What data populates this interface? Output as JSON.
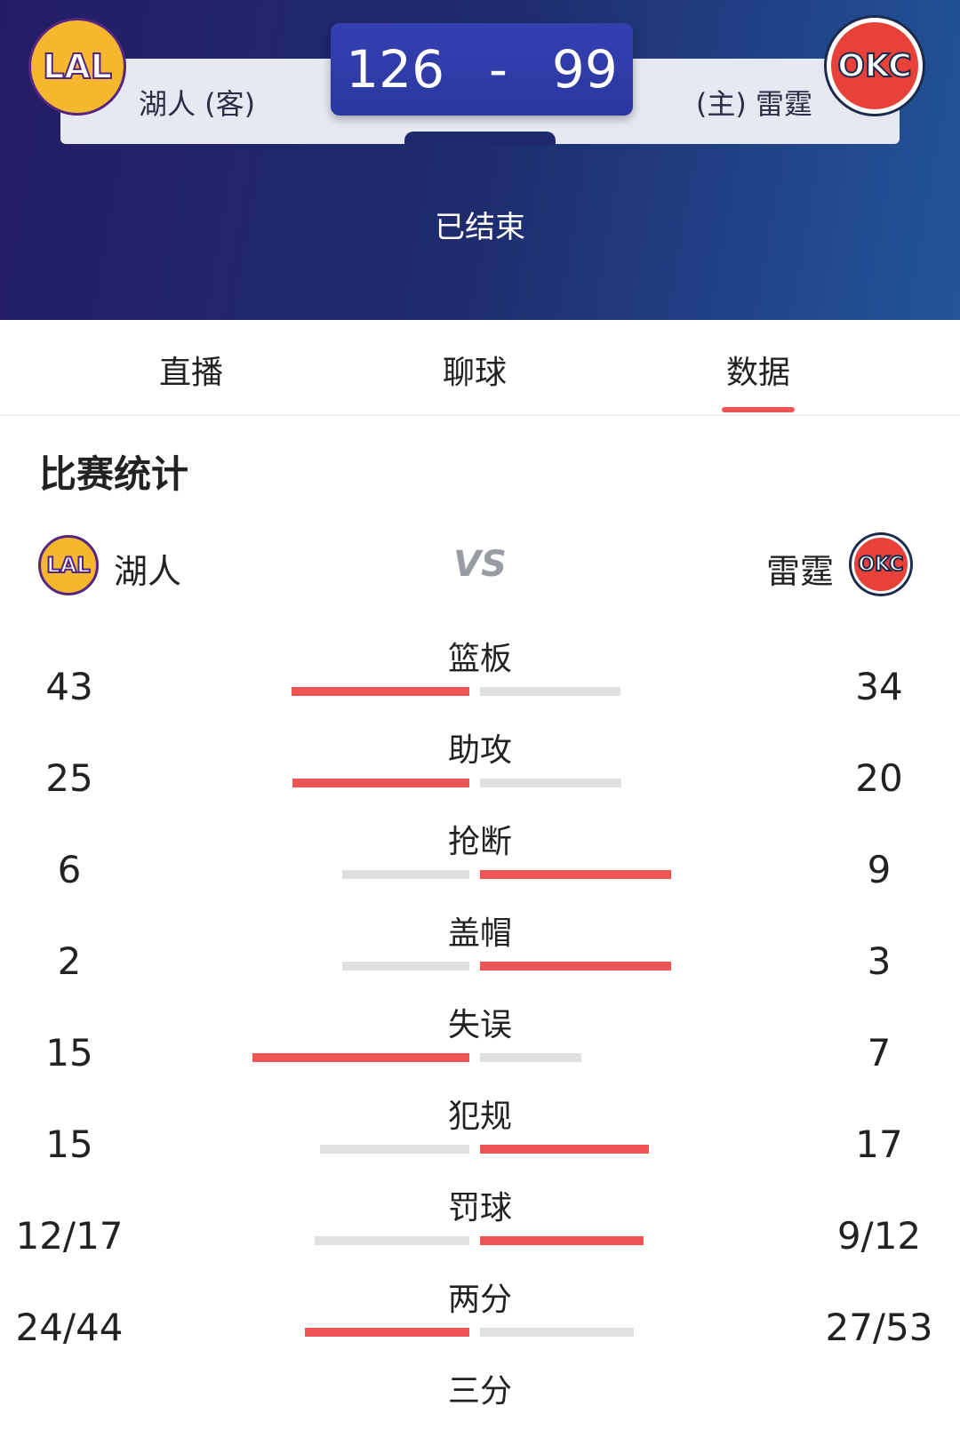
{
  "header": {
    "away": {
      "abbr": "LAL",
      "name": "湖人 (客)",
      "score": "126"
    },
    "home": {
      "abbr": "OKC",
      "name": "(主) 雷霆",
      "score": "99"
    },
    "separator": "-",
    "status": "已结束"
  },
  "tabs": [
    {
      "label": "直播"
    },
    {
      "label": "聊球"
    },
    {
      "label": "数据",
      "active": true
    }
  ],
  "section_title": "比赛统计",
  "compare": {
    "away_name": "湖人",
    "home_name": "雷霆",
    "vs": "VS"
  },
  "colors": {
    "accent": "#f05555",
    "bar_grey": "#e0e0e0",
    "hero_dark": "#241d66"
  },
  "stats": [
    {
      "label": "篮板",
      "away": "43",
      "home": "34"
    },
    {
      "label": "助攻",
      "away": "25",
      "home": "20"
    },
    {
      "label": "抢断",
      "away": "6",
      "home": "9"
    },
    {
      "label": "盖帽",
      "away": "2",
      "home": "3"
    },
    {
      "label": "失误",
      "away": "15",
      "home": "7"
    },
    {
      "label": "犯规",
      "away": "15",
      "home": "17"
    },
    {
      "label": "罚球",
      "away": "12/17",
      "home": "9/12"
    },
    {
      "label": "两分",
      "away": "24/44",
      "home": "27/53"
    },
    {
      "label": "三分",
      "away": "",
      "home": ""
    }
  ]
}
